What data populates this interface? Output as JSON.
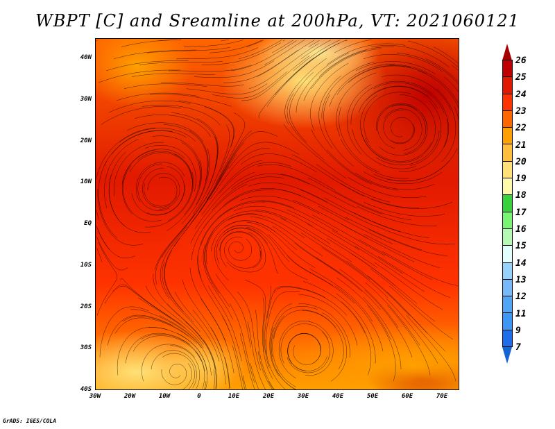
{
  "title": "WBPT [C] and Sreamline at 200hPa, VT: 2021060121",
  "lat_labels": [
    "40N",
    "30N",
    "20N",
    "10N",
    "EQ",
    "10S",
    "20S",
    "30S",
    "40S"
  ],
  "lon_labels": [
    "30W",
    "20W",
    "10W",
    "0",
    "10E",
    "20E",
    "30E",
    "40E",
    "50E",
    "60E",
    "70E"
  ],
  "colorbar": {
    "labels": [
      "26",
      "25",
      "24",
      "23",
      "22",
      "21",
      "20",
      "19",
      "18",
      "17",
      "16",
      "15",
      "14",
      "13",
      "12",
      "11",
      "9",
      "7"
    ],
    "top_color": "#a50000",
    "bottom_color": "#1464d2",
    "colors": [
      "#c00000",
      "#e11900",
      "#ff3300",
      "#ff6600",
      "#ffa000",
      "#ffbe3c",
      "#ffe178",
      "#fffaaa",
      "#37d23c",
      "#78f573",
      "#b4fab4",
      "#e1ffff",
      "#96d2fa",
      "#78b9fa",
      "#50a5f5",
      "#3c97f5",
      "#1e6eeb"
    ]
  },
  "footer": "GrADS: IGES/COLA"
}
